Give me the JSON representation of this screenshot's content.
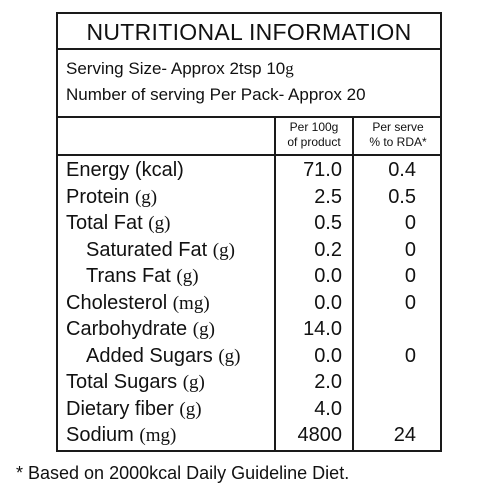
{
  "title": "NUTRITIONAL INFORMATION",
  "serving_size": {
    "label": "Serving Size- Approx 2tsp 10",
    "unit": "g"
  },
  "servings_per_pack": "Number of serving Per Pack- Approx 20",
  "columns": {
    "per100": [
      "Per 100g",
      "of product"
    ],
    "perserve": [
      "Per serve",
      "% to RDA*"
    ]
  },
  "rows": [
    {
      "name": "Energy (kcal)",
      "unit": "",
      "per100": "71.0",
      "rda": "0.4"
    },
    {
      "name": "Protein",
      "unit": "(g)",
      "per100": "2.5",
      "rda": "0.5"
    },
    {
      "name": "Total Fat",
      "unit": "(g)",
      "per100": "0.5",
      "rda": "0"
    },
    {
      "name": "Saturated Fat",
      "unit": "(g)",
      "per100": "0.2",
      "rda": "0"
    },
    {
      "name": "Trans Fat",
      "unit": "(g)",
      "per100": "0.0",
      "rda": "0"
    },
    {
      "name": "Cholesterol",
      "unit": "(mg)",
      "per100": "0.0",
      "rda": "0"
    },
    {
      "name": "Carbohydrate",
      "unit": "(g)",
      "per100": "14.0",
      "rda": ""
    },
    {
      "name": "Added Sugars",
      "unit": "(g)",
      "per100": "0.0",
      "rda": "0"
    },
    {
      "name": "Total Sugars",
      "unit": "(g)",
      "per100": "2.0",
      "rda": ""
    },
    {
      "name": "Dietary fiber",
      "unit": "(g)",
      "per100": "4.0",
      "rda": ""
    },
    {
      "name": "Sodium",
      "unit": "(mg)",
      "per100": "4800",
      "rda": "24"
    }
  ],
  "footnote": "* Based on 2000kcal Daily Guideline Diet."
}
